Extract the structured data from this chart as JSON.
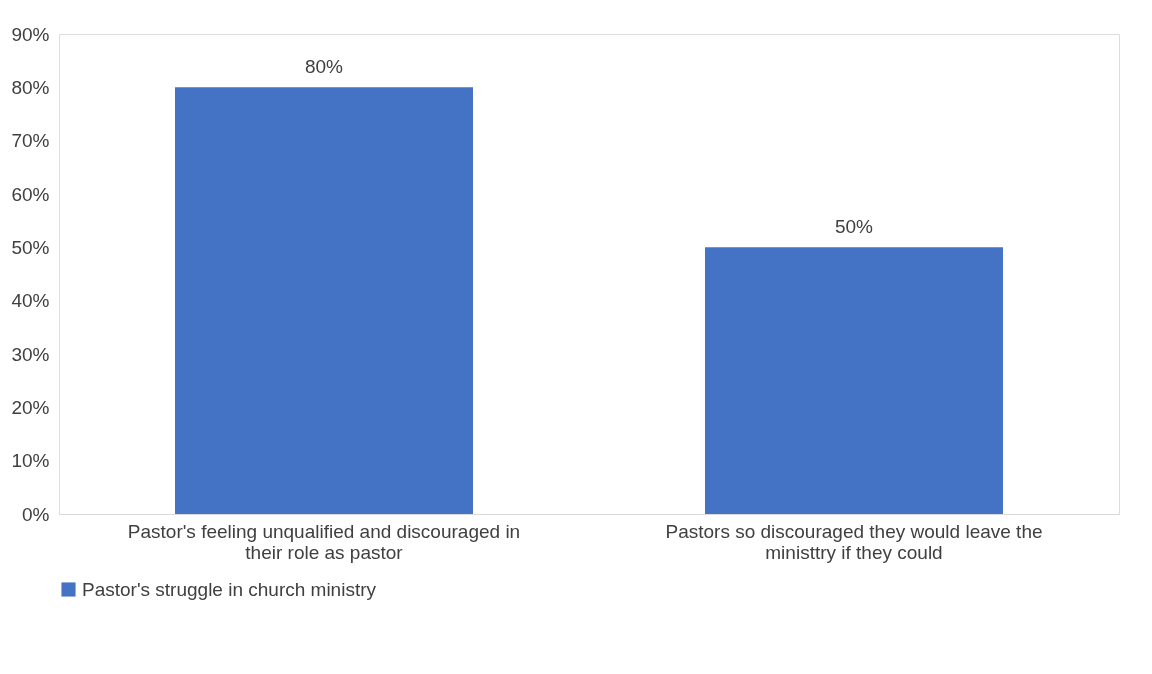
{
  "chart_data": {
    "type": "bar",
    "categories": [
      "Pastor's feeling unqualified and discouraged in their role as pastor",
      "Pastors so discouraged they would leave the ministtry if they could"
    ],
    "series": [
      {
        "name": "Pastor's struggle in church ministry",
        "color": "#4472c4",
        "values": [
          80,
          50
        ],
        "value_labels": [
          "80%",
          "50%"
        ]
      }
    ],
    "ylim": [
      0,
      90
    ],
    "yticks": [
      {
        "value": 0,
        "label": "0%"
      },
      {
        "value": 10,
        "label": "10%"
      },
      {
        "value": 20,
        "label": "20%"
      },
      {
        "value": 30,
        "label": "30%"
      },
      {
        "value": 40,
        "label": "40%"
      },
      {
        "value": 50,
        "label": "50%"
      },
      {
        "value": 60,
        "label": "60%"
      },
      {
        "value": 70,
        "label": "70%"
      },
      {
        "value": 80,
        "label": "80%"
      },
      {
        "value": 90,
        "label": "90%"
      }
    ],
    "grid": false,
    "legend": "bottom"
  }
}
